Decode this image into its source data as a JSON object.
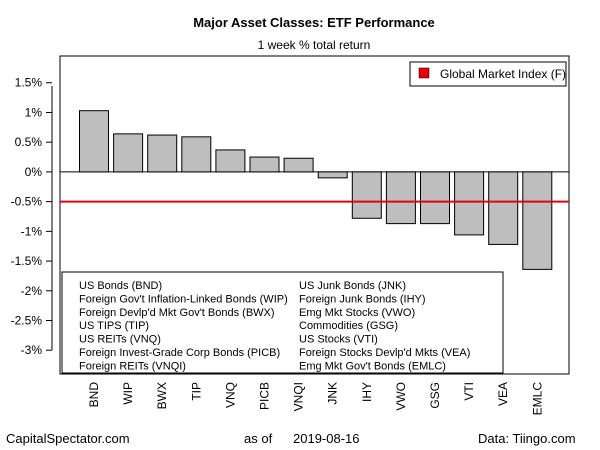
{
  "chart_data": {
    "type": "bar",
    "title": "Major Asset Classes: ETF Performance",
    "subtitle": "1 week % total return",
    "categories": [
      "BND",
      "WIP",
      "BWX",
      "TIP",
      "VNQ",
      "PICB",
      "VNQI",
      "JNK",
      "IHY",
      "VWO",
      "GSG",
      "VTI",
      "VEA",
      "EMLC"
    ],
    "values": [
      1.03,
      0.64,
      0.62,
      0.59,
      0.37,
      0.25,
      0.23,
      -0.1,
      -0.78,
      -0.87,
      -0.87,
      -1.06,
      -1.22,
      -1.64
    ],
    "ylim": [
      -3.4,
      1.95
    ],
    "yticks": [
      -3,
      -2.5,
      -2,
      -1.5,
      -1,
      -0.5,
      0,
      0.5,
      1,
      1.5
    ],
    "ytick_labels": [
      "-3%",
      "-2.5%",
      "-2%",
      "-1.5%",
      "-1%",
      "-0.5%",
      "0%",
      "0.5%",
      "1%",
      "1.5%"
    ],
    "reference_line": {
      "label": "Global Market Index (F)",
      "value": -0.5,
      "color": "#e8000b"
    },
    "zero_line": true,
    "bar_color": "#bebebe",
    "grid": false,
    "legend_position": "top-right",
    "ticker_legend": {
      "left": [
        "US Bonds (BND)",
        "Foreign Gov't Inflation-Linked Bonds (WIP)",
        "Foreign Devlp'd Mkt Gov't Bonds (BWX)",
        "US TIPS (TIP)",
        "US REITs (VNQ)",
        "Foreign Invest-Grade Corp Bonds (PICB)",
        "Foreign REITs (VNQI)"
      ],
      "right": [
        "US Junk Bonds (JNK)",
        "Foreign Junk Bonds (IHY)",
        "Emg Mkt Stocks (VWO)",
        "Commodities (GSG)",
        "US Stocks (VTI)",
        "Foreign Stocks Devlp'd Mkts (VEA)",
        "Emg Mkt Gov't Bonds (EMLC)"
      ]
    }
  },
  "footer": {
    "source_left": "CapitalSpectator.com",
    "as_of_label": "as of",
    "as_of_date": "2019-08-16",
    "source_right": "Data: Tiingo.com"
  }
}
